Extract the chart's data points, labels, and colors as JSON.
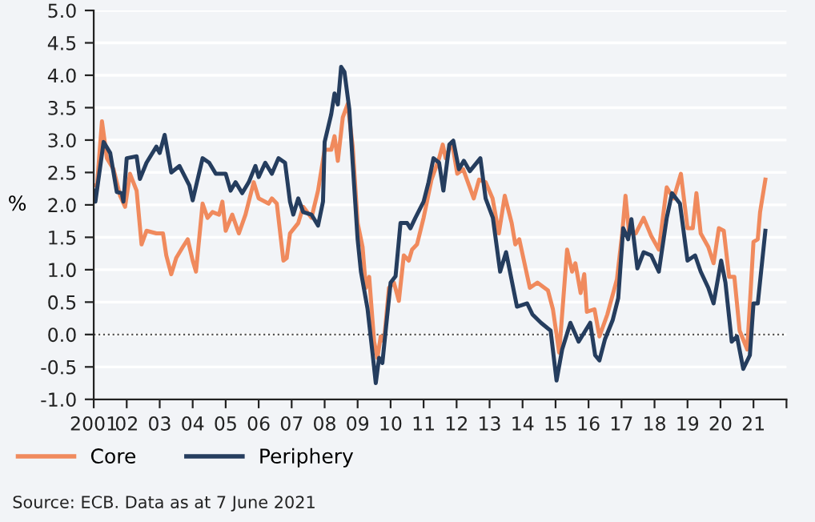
{
  "chart_data": {
    "type": "line",
    "ylabel": "%",
    "annotations": [
      "Source: ECB. Data as at 7 June 2021"
    ],
    "xlim": [
      2001,
      2022
    ],
    "ylim": [
      -1,
      5
    ],
    "xticks": [
      {
        "value": 2001,
        "label": "2001"
      },
      {
        "value": 2002,
        "label": "02"
      },
      {
        "value": 2003,
        "label": "03"
      },
      {
        "value": 2004,
        "label": "04"
      },
      {
        "value": 2005,
        "label": "05"
      },
      {
        "value": 2006,
        "label": "06"
      },
      {
        "value": 2007,
        "label": "07"
      },
      {
        "value": 2008,
        "label": "08"
      },
      {
        "value": 2009,
        "label": "09"
      },
      {
        "value": 2010,
        "label": "10"
      },
      {
        "value": 2011,
        "label": "11"
      },
      {
        "value": 2012,
        "label": "12"
      },
      {
        "value": 2013,
        "label": "13"
      },
      {
        "value": 2014,
        "label": "14"
      },
      {
        "value": 2015,
        "label": "15"
      },
      {
        "value": 2016,
        "label": "16"
      },
      {
        "value": 2017,
        "label": "17"
      },
      {
        "value": 2018,
        "label": "18"
      },
      {
        "value": 2019,
        "label": "19"
      },
      {
        "value": 2020,
        "label": "20"
      },
      {
        "value": 2021,
        "label": "21"
      },
      {
        "value": 2022,
        "label": null
      }
    ],
    "yticks": [
      {
        "value": -1,
        "label": "-1.0"
      },
      {
        "value": -0.5,
        "label": "-0.5"
      },
      {
        "value": 0,
        "label": "0.0"
      },
      {
        "value": 0.5,
        "label": "0.5"
      },
      {
        "value": 1,
        "label": "1.0"
      },
      {
        "value": 1.5,
        "label": "1.5"
      },
      {
        "value": 2,
        "label": "2.0"
      },
      {
        "value": 2.5,
        "label": "2.5"
      },
      {
        "value": 3,
        "label": "3.0"
      },
      {
        "value": 3.5,
        "label": "3.5"
      },
      {
        "value": 4,
        "label": "4.0"
      },
      {
        "value": 4.5,
        "label": "4.5"
      },
      {
        "value": 5,
        "label": "5.0"
      }
    ],
    "grid": "y",
    "legend": "bottom",
    "marker": "none",
    "line_style": "solid",
    "ref_lines": [
      {
        "axis": "y",
        "value": 0,
        "label": null,
        "color": "#555555",
        "line_style": "dotted"
      }
    ],
    "series": [
      {
        "name": "Core",
        "color": "#f08a5d",
        "x": [
          2001.0,
          2001.1,
          2001.25,
          2001.4,
          2001.6,
          2001.8,
          2001.95,
          2002.1,
          2002.3,
          2002.45,
          2002.6,
          2002.9,
          2003.1,
          2003.2,
          2003.35,
          2003.5,
          2003.7,
          2003.85,
          2004.0,
          2004.1,
          2004.3,
          2004.45,
          2004.6,
          2004.8,
          2004.9,
          2005.0,
          2005.2,
          2005.4,
          2005.6,
          2005.85,
          2006.0,
          2006.3,
          2006.4,
          2006.55,
          2006.75,
          2006.85,
          2006.95,
          2007.2,
          2007.35,
          2007.6,
          2007.8,
          2008.0,
          2008.2,
          2008.3,
          2008.4,
          2008.55,
          2008.7,
          2008.85,
          2009.0,
          2009.15,
          2009.25,
          2009.35,
          2009.5,
          2009.6,
          2009.7,
          2009.8,
          2009.95,
          2010.1,
          2010.25,
          2010.4,
          2010.55,
          2010.65,
          2010.8,
          2011.0,
          2011.24,
          2011.47,
          2011.58,
          2011.67,
          2011.86,
          2012.02,
          2012.2,
          2012.52,
          2012.68,
          2012.88,
          2013.09,
          2013.28,
          2013.46,
          2013.67,
          2013.78,
          2013.9,
          2014.22,
          2014.45,
          2014.77,
          2014.92,
          2015.11,
          2015.35,
          2015.5,
          2015.6,
          2015.76,
          2015.87,
          2015.95,
          2016.18,
          2016.33,
          2016.57,
          2016.86,
          2017.02,
          2017.12,
          2017.23,
          2017.43,
          2017.67,
          2017.9,
          2018.13,
          2018.37,
          2018.58,
          2018.8,
          2019.0,
          2019.16,
          2019.27,
          2019.4,
          2019.63,
          2019.79,
          2019.95,
          2020.1,
          2020.26,
          2020.42,
          2020.58,
          2020.81,
          2021.0,
          2021.13,
          2021.2,
          2021.36
        ],
        "values": [
          2.3,
          2.3,
          3.29,
          2.72,
          2.55,
          2.14,
          1.97,
          2.48,
          2.22,
          1.39,
          1.6,
          1.56,
          1.56,
          1.22,
          0.93,
          1.18,
          1.35,
          1.47,
          1.14,
          0.97,
          2.02,
          1.8,
          1.89,
          1.85,
          2.05,
          1.6,
          1.85,
          1.56,
          1.85,
          2.35,
          2.1,
          2.02,
          2.1,
          2.02,
          1.14,
          1.18,
          1.56,
          1.72,
          1.97,
          1.8,
          2.22,
          2.85,
          2.85,
          3.06,
          2.68,
          3.35,
          3.56,
          2.9,
          1.72,
          1.35,
          0.72,
          0.89,
          -0.11,
          -0.36,
          -0.03,
          -0.11,
          0.72,
          0.8,
          0.52,
          1.22,
          1.14,
          1.31,
          1.39,
          1.8,
          2.39,
          2.72,
          2.93,
          2.72,
          2.97,
          2.48,
          2.55,
          2.1,
          2.39,
          2.35,
          2.1,
          1.56,
          2.14,
          1.72,
          1.39,
          1.47,
          0.72,
          0.8,
          0.68,
          0.39,
          -0.28,
          1.31,
          0.97,
          1.1,
          0.64,
          0.93,
          0.35,
          0.39,
          -0.03,
          0.31,
          0.85,
          1.56,
          2.14,
          1.56,
          1.56,
          1.8,
          1.52,
          1.31,
          2.27,
          2.1,
          2.48,
          1.64,
          1.64,
          2.18,
          1.56,
          1.35,
          1.1,
          1.64,
          1.6,
          0.89,
          0.89,
          0.06,
          -0.23,
          1.43,
          1.47,
          1.89,
          2.39
        ]
      },
      {
        "name": "Periphery",
        "color": "#253d5e",
        "x": [
          2001.0,
          2001.05,
          2001.3,
          2001.5,
          2001.7,
          2001.85,
          2001.9,
          2002.0,
          2002.3,
          2002.4,
          2002.6,
          2002.9,
          2003.0,
          2003.15,
          2003.35,
          2003.6,
          2003.9,
          2004.0,
          2004.3,
          2004.5,
          2004.7,
          2005.0,
          2005.15,
          2005.3,
          2005.5,
          2005.7,
          2005.9,
          2006.0,
          2006.2,
          2006.4,
          2006.6,
          2006.8,
          2006.95,
          2007.05,
          2007.2,
          2007.35,
          2007.6,
          2007.8,
          2007.95,
          2008.0,
          2008.2,
          2008.3,
          2008.4,
          2008.5,
          2008.6,
          2008.75,
          2008.85,
          2009.0,
          2009.1,
          2009.3,
          2009.45,
          2009.55,
          2009.65,
          2009.75,
          2009.85,
          2010.0,
          2010.15,
          2010.3,
          2010.5,
          2010.6,
          2010.75,
          2011.0,
          2011.15,
          2011.3,
          2011.47,
          2011.6,
          2011.78,
          2011.9,
          2012.07,
          2012.22,
          2012.4,
          2012.72,
          2012.88,
          2013.1,
          2013.32,
          2013.5,
          2013.83,
          2014.14,
          2014.3,
          2014.56,
          2014.85,
          2015.03,
          2015.2,
          2015.45,
          2015.7,
          2016.05,
          2016.2,
          2016.33,
          2016.5,
          2016.73,
          2016.9,
          2017.05,
          2017.2,
          2017.3,
          2017.48,
          2017.67,
          2017.9,
          2018.13,
          2018.37,
          2018.53,
          2018.77,
          2019.0,
          2019.23,
          2019.4,
          2019.63,
          2019.79,
          2020.02,
          2020.15,
          2020.34,
          2020.5,
          2020.69,
          2020.89,
          2021.0,
          2021.13,
          2021.36
        ],
        "values": [
          2.22,
          2.05,
          2.97,
          2.8,
          2.2,
          2.18,
          2.05,
          2.72,
          2.75,
          2.4,
          2.65,
          2.9,
          2.8,
          3.08,
          2.5,
          2.6,
          2.3,
          2.07,
          2.72,
          2.65,
          2.48,
          2.48,
          2.22,
          2.35,
          2.18,
          2.35,
          2.6,
          2.43,
          2.65,
          2.48,
          2.72,
          2.65,
          2.05,
          1.85,
          2.1,
          1.89,
          1.85,
          1.68,
          2.05,
          2.97,
          3.4,
          3.72,
          3.55,
          4.13,
          4.05,
          3.47,
          2.65,
          1.47,
          0.97,
          0.4,
          -0.28,
          -0.75,
          -0.36,
          -0.44,
          0.06,
          0.8,
          0.9,
          1.72,
          1.72,
          1.64,
          1.8,
          2.05,
          2.35,
          2.72,
          2.65,
          2.22,
          2.93,
          2.99,
          2.55,
          2.68,
          2.52,
          2.72,
          2.1,
          1.8,
          0.97,
          1.27,
          0.43,
          0.48,
          0.31,
          0.18,
          0.06,
          -0.71,
          -0.23,
          0.18,
          -0.11,
          0.18,
          -0.32,
          -0.4,
          -0.07,
          0.22,
          0.56,
          1.64,
          1.47,
          1.78,
          1.02,
          1.27,
          1.22,
          0.97,
          1.8,
          2.18,
          2.02,
          1.14,
          1.22,
          0.97,
          0.72,
          0.48,
          1.14,
          0.8,
          -0.11,
          -0.03,
          -0.53,
          -0.32,
          0.48,
          0.48,
          1.6
        ]
      }
    ]
  }
}
